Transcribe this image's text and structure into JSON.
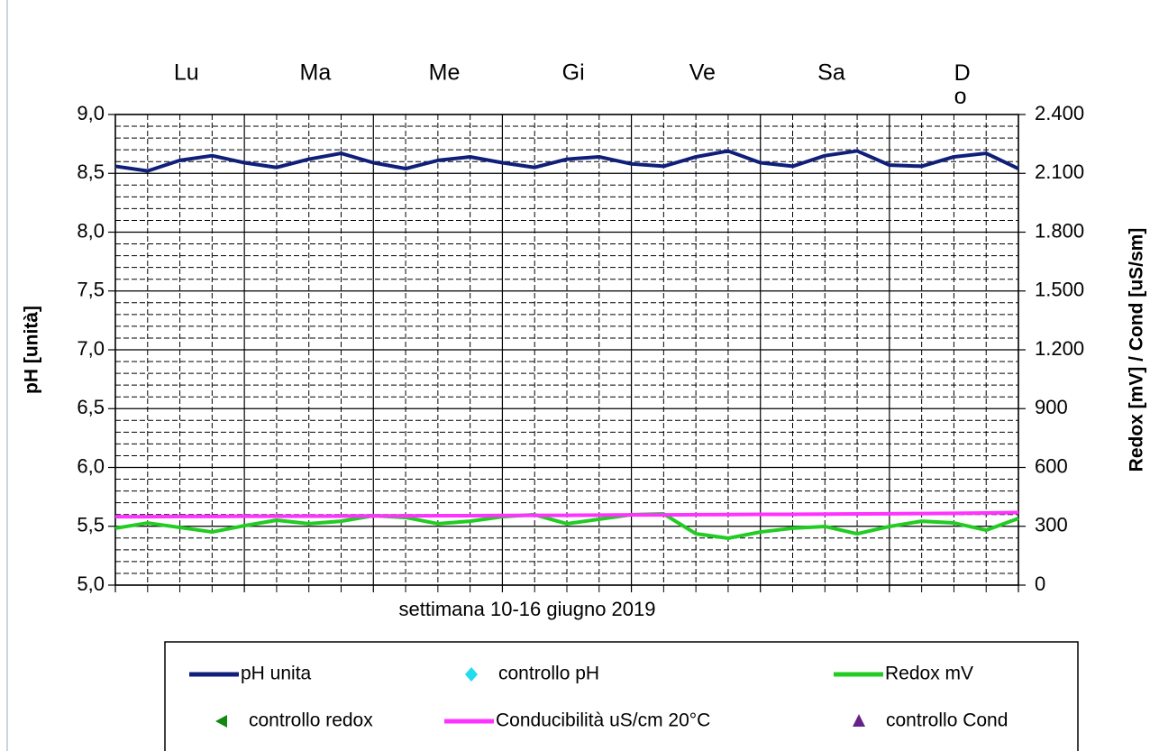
{
  "chart_data": {
    "type": "line",
    "day_labels": [
      "Lu",
      "Ma",
      "Me",
      "Gi",
      "Ve",
      "Sa",
      "Do"
    ],
    "xlabel": "settimana 10-16 giugno 2019",
    "ylabel": "pH [unità]",
    "y2label": "Redox [mV] / Cond [uS/sm]",
    "x": [
      0,
      6,
      12,
      18,
      24,
      30,
      36,
      42,
      48,
      54,
      60,
      66,
      72,
      78,
      84,
      90,
      96,
      102,
      108,
      114,
      120,
      126,
      132,
      138,
      144,
      150,
      156,
      162,
      168
    ],
    "xlim": [
      0,
      168
    ],
    "xticks": [
      0,
      24,
      48,
      72,
      96,
      120,
      144,
      168
    ],
    "ylim": [
      5,
      9
    ],
    "yticks": [
      {
        "value": 5,
        "label": "5,0"
      },
      {
        "value": 5.5,
        "label": "5,5"
      },
      {
        "value": 6,
        "label": "6,0"
      },
      {
        "value": 6.5,
        "label": "6,5"
      },
      {
        "value": 7,
        "label": "7,0"
      },
      {
        "value": 7.5,
        "label": "7,5"
      },
      {
        "value": 8,
        "label": "8,0"
      },
      {
        "value": 8.5,
        "label": "8,5"
      },
      {
        "value": 9,
        "label": "9,0"
      }
    ],
    "y2lim": [
      0,
      2400
    ],
    "y2ticks": [
      0,
      300,
      600,
      900,
      {
        "value": 1200,
        "label": "1.200"
      },
      {
        "value": 1500,
        "label": "1.500"
      },
      {
        "value": 1800,
        "label": "1.800"
      },
      {
        "value": 2100,
        "label": "2.100"
      },
      {
        "value": 2400,
        "label": "2.400"
      }
    ],
    "grid": true,
    "series": [
      {
        "name": "pH unita",
        "color": "#10207a",
        "values": [
          8.56,
          8.52,
          8.61,
          8.65,
          8.59,
          8.55,
          8.62,
          8.67,
          8.59,
          8.54,
          8.61,
          8.64,
          8.59,
          8.55,
          8.62,
          8.64,
          8.58,
          8.56,
          8.64,
          8.69,
          8.59,
          8.56,
          8.65,
          8.69,
          8.57,
          8.56,
          8.64,
          8.67,
          8.54
        ]
      },
      {
        "name": "controllo pH",
        "color": "#22ddee",
        "marker": "diamond",
        "values": [
          null,
          null,
          null,
          null,
          null,
          null,
          null,
          null,
          null,
          null,
          null,
          null,
          null,
          null,
          null,
          null,
          null,
          null,
          null,
          null,
          null,
          null,
          null,
          null,
          null,
          null,
          null,
          null,
          null
        ]
      },
      {
        "name": "Redox mV",
        "color": "#22cc22",
        "axis": "y2",
        "values": [
          290,
          317,
          294,
          271,
          303,
          331,
          313,
          326,
          354,
          345,
          313,
          326,
          349,
          359,
          313,
          336,
          359,
          363,
          262,
          239,
          271,
          290,
          299,
          262,
          299,
          326,
          317,
          280,
          340
        ]
      },
      {
        "name": "controllo redox",
        "color": "#118811",
        "marker": "triangle-left",
        "axis": "y2",
        "values": [
          null,
          null,
          null,
          null,
          null,
          null,
          null,
          null,
          null,
          null,
          null,
          null,
          null,
          null,
          null,
          null,
          null,
          null,
          null,
          null,
          null,
          null,
          null,
          null,
          null,
          null,
          null,
          null,
          null
        ]
      },
      {
        "name": "Conducibilità uS/cm 20°C",
        "color": "#ff33ff",
        "axis": "y2",
        "values": [
          349,
          349,
          350,
          350,
          351,
          351,
          352,
          352,
          353,
          353,
          354,
          354,
          355,
          356,
          356,
          357,
          358,
          358,
          359,
          360,
          361,
          361,
          362,
          363,
          364,
          365,
          366,
          368,
          370
        ]
      },
      {
        "name": "controllo Cond",
        "color": "#662288",
        "marker": "triangle-up",
        "axis": "y2",
        "values": [
          null,
          null,
          null,
          null,
          null,
          null,
          null,
          null,
          null,
          null,
          null,
          null,
          null,
          null,
          null,
          null,
          null,
          null,
          null,
          null,
          null,
          null,
          null,
          null,
          null,
          null,
          null,
          null,
          null
        ]
      }
    ]
  }
}
